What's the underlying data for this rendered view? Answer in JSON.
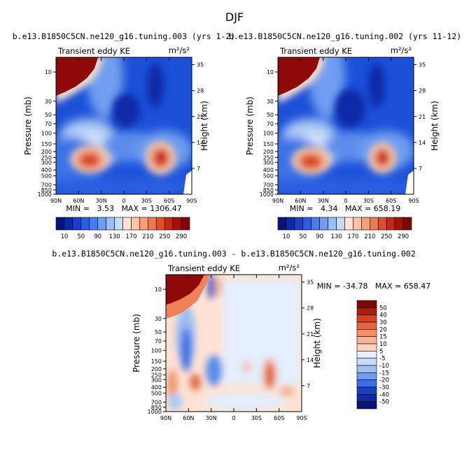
{
  "title": "DJF",
  "chart_data": [
    {
      "type": "heatmap",
      "title": "b.e13.B1850C5CN.ne120_g16.tuning.003 (yrs 1-2)",
      "left_label": "Transient eddy KE",
      "units_label": "m²/s²",
      "ylabel": "Pressure (mb)",
      "ylabel_right": "Height (km)",
      "x_ticks": [
        "90N",
        "60N",
        "30N",
        "0",
        "30S",
        "60S",
        "90S"
      ],
      "y_ticks": [
        "10",
        "30",
        "50",
        "70",
        "100",
        "150",
        "200",
        "250",
        "300",
        "400",
        "500",
        "700",
        "850",
        "1000"
      ],
      "y_ticks_right": [
        "35",
        "28",
        "21",
        "14",
        "7"
      ],
      "stats_text": "MIN =   3.53   MAX = 1306.47",
      "levels": [
        10,
        30,
        50,
        70,
        90,
        110,
        130,
        150,
        170,
        190,
        210,
        230,
        250,
        270,
        290
      ],
      "colorbar_labels": [
        "10",
        "50",
        "90",
        "130",
        "170",
        "210",
        "250",
        "290"
      ]
    },
    {
      "type": "heatmap",
      "title": "b.e13.B1850C5CN.ne120_g16.tuning.002 (yrs 11-12)",
      "left_label": "Transient eddy KE",
      "units_label": "m²/s²",
      "ylabel": "Pressure (mb)",
      "ylabel_right": "Height (km)",
      "x_ticks": [
        "90N",
        "60N",
        "30N",
        "0",
        "30S",
        "60S",
        "90S"
      ],
      "y_ticks": [
        "10",
        "30",
        "50",
        "70",
        "100",
        "150",
        "200",
        "250",
        "300",
        "400",
        "500",
        "700",
        "850",
        "1000"
      ],
      "y_ticks_right": [
        "35",
        "28",
        "21",
        "14",
        "7"
      ],
      "stats_text": "MIN =   4.34   MAX = 658.19",
      "levels": [
        10,
        30,
        50,
        70,
        90,
        110,
        130,
        150,
        170,
        190,
        210,
        230,
        250,
        270,
        290
      ],
      "colorbar_labels": [
        "10",
        "50",
        "90",
        "130",
        "170",
        "210",
        "250",
        "290"
      ]
    },
    {
      "type": "heatmap",
      "title": "b.e13.B1850C5CN.ne120_g16.tuning.003 - b.e13.B1850C5CN.ne120_g16.tuning.002",
      "left_label": "Transient eddy KE",
      "units_label": "m²/s²",
      "ylabel": "Pressure (mb)",
      "ylabel_right": "Height (km)",
      "x_ticks": [
        "90N",
        "60N",
        "30N",
        "0",
        "30S",
        "60S",
        "90S"
      ],
      "y_ticks": [
        "10",
        "30",
        "50",
        "70",
        "100",
        "150",
        "200",
        "250",
        "300",
        "400",
        "500",
        "700",
        "850",
        "1000"
      ],
      "y_ticks_right": [
        "35",
        "28",
        "21",
        "14",
        "7"
      ],
      "stats_text": "MIN = -34.78   MAX = 658.47",
      "levels": [
        -50,
        -40,
        -30,
        -20,
        -15,
        -10,
        -5,
        5,
        10,
        15,
        20,
        30,
        40,
        50
      ],
      "colorbar_labels": [
        "50",
        "40",
        "30",
        "20",
        "15",
        "10",
        "5",
        "-5",
        "-10",
        "-15",
        "-20",
        "-30",
        "-40",
        "-50"
      ]
    }
  ]
}
